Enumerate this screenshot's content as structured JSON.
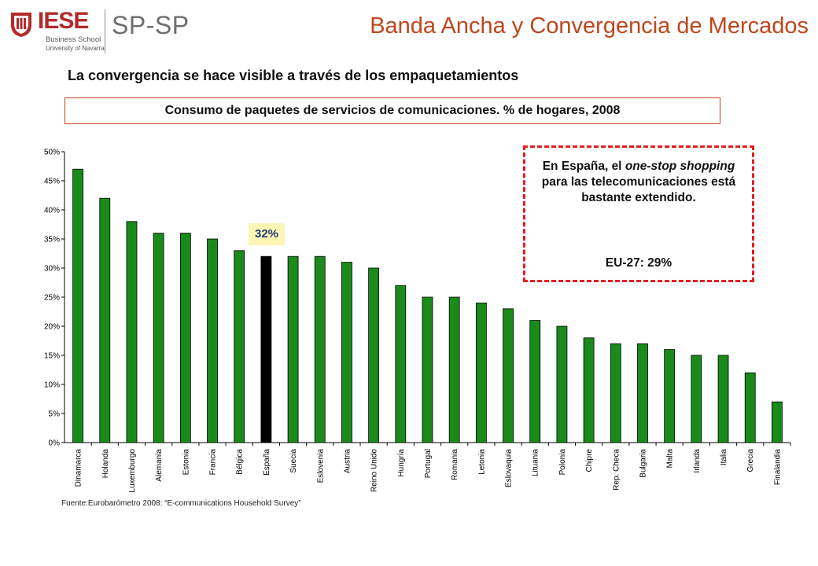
{
  "header": {
    "logo_text": "IESE",
    "logo_sub1": "Business School",
    "logo_sub2": "University of Navarra",
    "logo_spsp": "SP-SP",
    "title": "Banda Ancha y Convergencia de Mercados"
  },
  "subtitle": "La convergencia se hace visible a través de los empaquetamientos",
  "chart_box_title": "Consumo de paquetes de servicios de comunicaciones. % de hogares, 2008",
  "callout": {
    "text_parts": [
      "En España, el ",
      "one-stop shopping",
      " para las telecomunicaciones está bastante extendido."
    ],
    "eu": "EU-27: 29%"
  },
  "highlight_label": "32%",
  "source": "Fuente:Eurobarómetro 2008: “E-communications Household Survey”",
  "colors": {
    "bar": "#1a8a1a",
    "highlight_bar": "#000000",
    "title": "#c0461c",
    "callout_border": "#e02020",
    "label_bg": "#fcf6b4"
  },
  "chart_data": {
    "type": "bar",
    "title": "Consumo de paquetes de servicios de comunicaciones. % de hogares, 2008",
    "categories": [
      "Dinamarca",
      "Holanda",
      "Luxemburgo",
      "Alemania",
      "Estonia",
      "Francia",
      "Bélgica",
      "España",
      "Suecia",
      "Eslovenia",
      "Austria",
      "Reino Unido",
      "Hungría",
      "Portugal",
      "Romania",
      "Letonia",
      "Eslovaquia",
      "Lituania",
      "Polonia",
      "Chipre",
      "Rep. Checa",
      "Bulgaria",
      "Malta",
      "Irlanda",
      "Italia",
      "Grecia",
      "Finalandia"
    ],
    "values": [
      47,
      42,
      38,
      36,
      36,
      35,
      33,
      32,
      32,
      32,
      31,
      30,
      27,
      25,
      25,
      24,
      23,
      21,
      20,
      18,
      17,
      17,
      16,
      15,
      15,
      12,
      7
    ],
    "highlight_category": "España",
    "ylim": [
      0,
      50
    ],
    "yticks": [
      "0%",
      "5%",
      "10%",
      "15%",
      "20%",
      "25%",
      "30%",
      "35%",
      "40%",
      "45%",
      "50%"
    ],
    "xlabel": "",
    "ylabel": "",
    "grid": false
  }
}
